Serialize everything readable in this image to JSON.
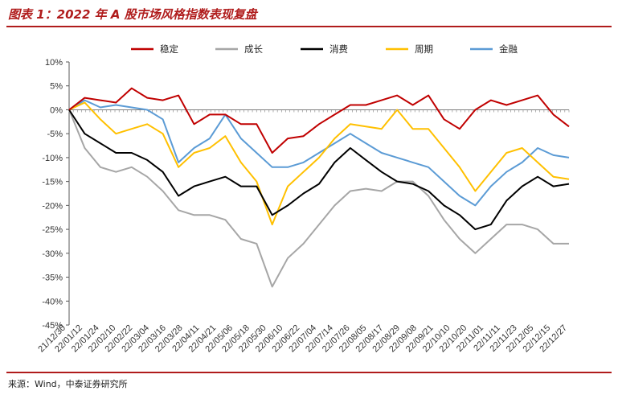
{
  "header": {
    "title": "图表 1：2022 年 A 股市场风格指数表现复盘"
  },
  "footer": {
    "source": "来源：Wind，中泰证券研究所"
  },
  "chart_data": {
    "type": "line",
    "title": "",
    "xlabel": "",
    "ylabel": "",
    "ylim": [
      -45,
      10
    ],
    "ytick_values": [
      10,
      5,
      0,
      -5,
      -10,
      -15,
      -20,
      -25,
      -30,
      -35,
      -40,
      -45
    ],
    "ytick_labels": [
      "10%",
      "5%",
      "0%",
      "-5%",
      "-10%",
      "-15%",
      "-20%",
      "-25%",
      "-30%",
      "-35%",
      "-40%",
      "-45%"
    ],
    "x_tick_labels": [
      "21/12/30",
      "22/01/12",
      "22/01/24",
      "22/02/10",
      "22/02/22",
      "22/03/04",
      "22/03/16",
      "22/03/28",
      "22/04/11",
      "22/04/21",
      "22/05/06",
      "22/05/18",
      "22/05/30",
      "22/06/10",
      "22/06/22",
      "22/07/04",
      "22/07/14",
      "22/07/26",
      "22/08/05",
      "22/08/17",
      "22/08/29",
      "22/09/08",
      "22/09/21",
      "22/10/10",
      "22/10/20",
      "22/11/01",
      "22/11/11",
      "22/11/23",
      "22/12/05",
      "22/12/15",
      "22/12/27"
    ],
    "grid": false,
    "legend_position": "top",
    "series": [
      {
        "name": "稳定",
        "color": "#c00000",
        "values": [
          0,
          2.5,
          2.0,
          1.5,
          4.5,
          2.5,
          2.0,
          3.0,
          -3.0,
          -1.0,
          -1.0,
          -3.0,
          -3.0,
          -9.0,
          -6.0,
          -5.5,
          -3.0,
          -1.0,
          1.0,
          1.0,
          2.0,
          3.0,
          1.0,
          3.0,
          -2.0,
          -4.0,
          0.0,
          2.0,
          1.0,
          2.0,
          3.0,
          -1.0,
          -3.5
        ]
      },
      {
        "name": "成长",
        "color": "#a6a6a6",
        "values": [
          0,
          -8.0,
          -12.0,
          -13.0,
          -12.0,
          -14.0,
          -17.0,
          -21.0,
          -22.0,
          -22.0,
          -23.0,
          -27.0,
          -28.0,
          -37.0,
          -31.0,
          -28.0,
          -24.0,
          -20.0,
          -17.0,
          -16.5,
          -17.0,
          -15.0,
          -15.0,
          -18.0,
          -23.0,
          -27.0,
          -30.0,
          -27.0,
          -24.0,
          -24.0,
          -25.0,
          -28.0,
          -28.0
        ]
      },
      {
        "name": "消费",
        "color": "#000000",
        "values": [
          0,
          -5.0,
          -7.0,
          -9.0,
          -9.0,
          -10.5,
          -13.0,
          -18.0,
          -16.0,
          -15.0,
          -14.0,
          -16.0,
          -16.0,
          -22.0,
          -20.0,
          -17.5,
          -15.5,
          -11.0,
          -8.0,
          -10.5,
          -13.0,
          -15.0,
          -15.5,
          -17.0,
          -20.0,
          -22.0,
          -25.0,
          -24.0,
          -19.0,
          -16.0,
          -14.0,
          -16.0,
          -15.5
        ]
      },
      {
        "name": "周期",
        "color": "#ffc000",
        "values": [
          0,
          1.5,
          -2.0,
          -5.0,
          -4.0,
          -3.0,
          -5.0,
          -12.0,
          -9.0,
          -8.0,
          -5.5,
          -11.0,
          -15.0,
          -24.0,
          -16.0,
          -13.0,
          -10.0,
          -6.0,
          -3.0,
          -3.5,
          -4.0,
          0.0,
          -4.0,
          -4.0,
          -8.0,
          -12.0,
          -17.0,
          -13.0,
          -9.0,
          -8.0,
          -11.0,
          -14.0,
          -14.5
        ]
      },
      {
        "name": "金融",
        "color": "#5b9bd5",
        "values": [
          0,
          2.0,
          0.5,
          1.0,
          0.5,
          0.0,
          -2.0,
          -11.0,
          -8.0,
          -6.0,
          -1.0,
          -6.0,
          -9.0,
          -12.0,
          -12.0,
          -11.0,
          -9.0,
          -7.0,
          -5.0,
          -7.0,
          -9.0,
          -10.0,
          -11.0,
          -12.0,
          -15.0,
          -18.0,
          -20.0,
          -16.0,
          -13.0,
          -11.0,
          -8.0,
          -9.5,
          -10.0
        ]
      }
    ]
  }
}
